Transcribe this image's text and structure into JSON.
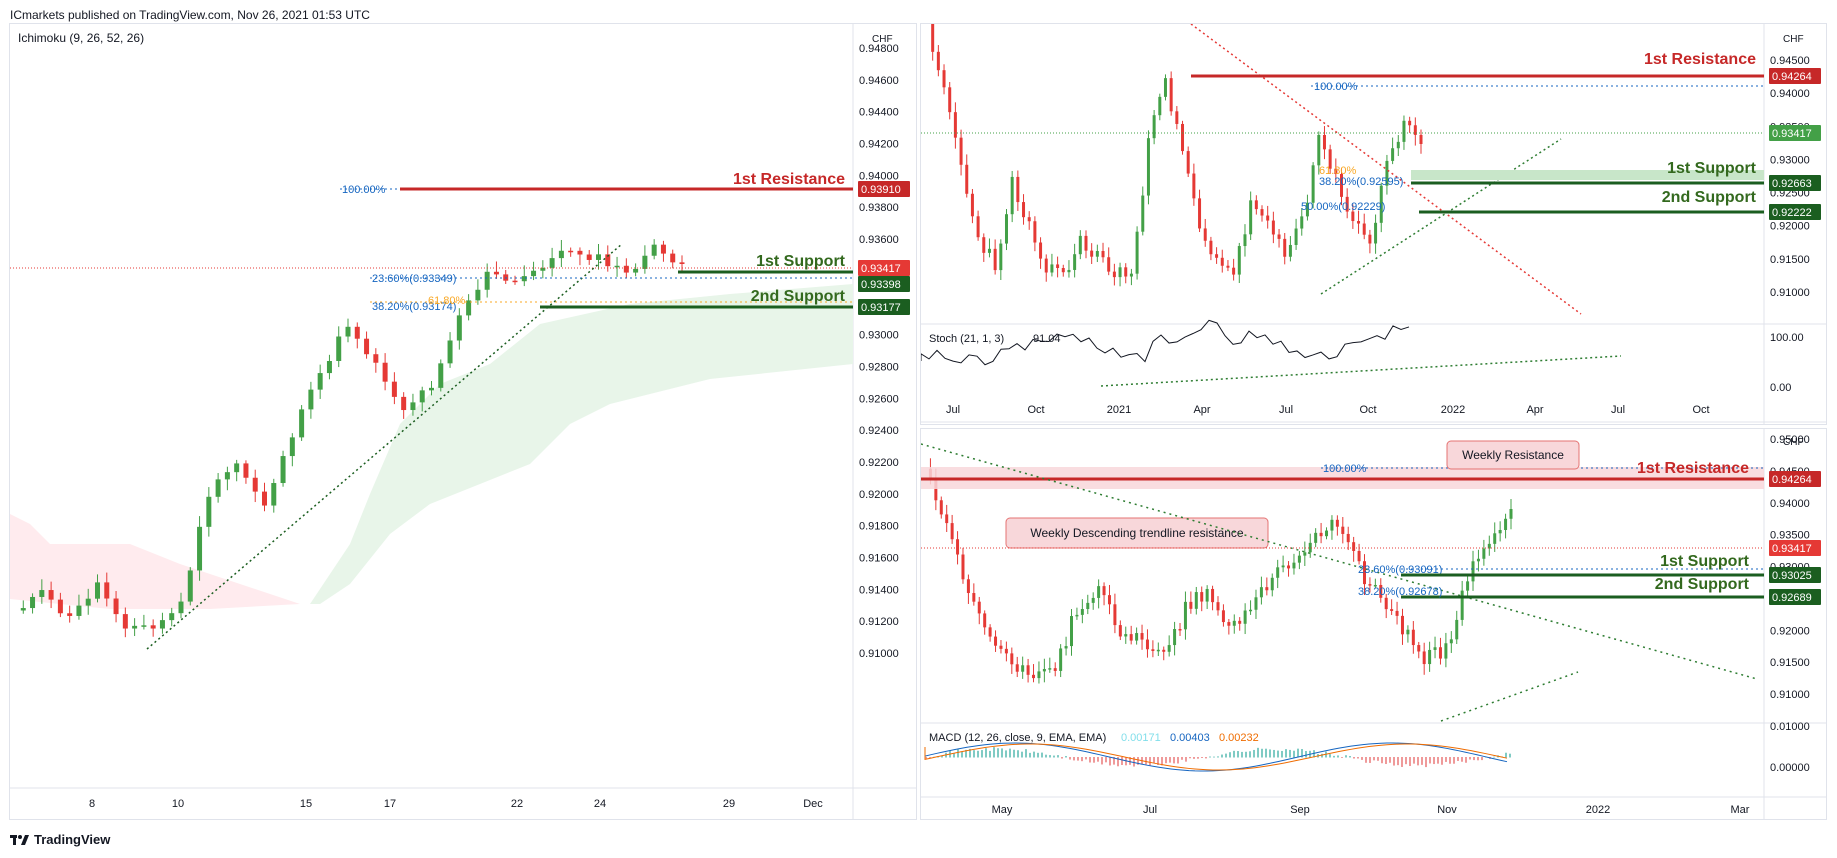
{
  "header": {
    "published": "ICmarkets published on TradingView.com, Nov 26, 2021 01:53 UTC"
  },
  "footer": {
    "brand": "TradingView",
    "logo_icon": "tradingview-logo-icon"
  },
  "colors": {
    "bull": "#43a047",
    "bear": "#e53935",
    "resistance": "#c62828",
    "support": "#1b5e20",
    "support_text": "#33691e",
    "fib": "#1565c0",
    "current": "#e53935",
    "cloud_bull": "#e8f5e9",
    "cloud_bear": "#ffebee"
  },
  "left_chart": {
    "indicator": "Ichimoku (9, 26, 52, 26)",
    "currency": "CHF",
    "y_ticks": [
      "0.94800",
      "0.94600",
      "0.94400",
      "0.94200",
      "0.94000",
      "0.93800",
      "0.93600",
      "0.93400",
      "0.93200",
      "0.93000",
      "0.92800",
      "0.92600",
      "0.92400",
      "0.92200",
      "0.92000",
      "0.91800",
      "0.91600",
      "0.91400",
      "0.91200",
      "0.91000"
    ],
    "x_ticks": [
      "8",
      "10",
      "15",
      "17",
      "22",
      "24",
      "29",
      "Dec"
    ],
    "lines": {
      "resistance_label": "1st Resistance",
      "resistance_price": "0.93910",
      "resistance_fib": "100.00%",
      "support1_label": "1st Support",
      "support1_price": "0.93398",
      "support1_fib": "23.60%(0.93349)",
      "support2_label": "2nd Support",
      "support2_price": "0.93177",
      "support2_fib": "38.20%(0.93174)",
      "support2_fib2": "61.80%",
      "current_price": "0.93417"
    }
  },
  "right_top_chart": {
    "currency": "CHF",
    "y_ticks": [
      "0.94500",
      "0.94000",
      "0.93500",
      "0.93000",
      "0.92500",
      "0.92000",
      "0.91500",
      "0.91000"
    ],
    "x_ticks": [
      "Jul",
      "Oct",
      "2021",
      "Apr",
      "Jul",
      "Oct",
      "2022",
      "Apr",
      "Jul",
      "Oct"
    ],
    "lines": {
      "resistance_label": "1st Resistance",
      "resistance_price": "0.94264",
      "resistance_fib": "100.00%",
      "support1_label": "1st Support",
      "support1_price": "0.92663",
      "support1_fib": "38.20%(0.92595)",
      "support1_fib2": "61.80%",
      "support2_label": "2nd Support",
      "support2_price": "0.92222",
      "support2_fib": "50.00%(0.92229)",
      "current_price": "0.93417"
    },
    "stoch": {
      "label": "Stoch (21, 1, 3)",
      "value": "91.04",
      "ticks": [
        "100.00",
        "0.00"
      ]
    }
  },
  "right_bottom_chart": {
    "currency": "CHF",
    "y_ticks": [
      "0.95000",
      "0.94500",
      "0.94000",
      "0.93500",
      "0.93000",
      "0.92500",
      "0.92000",
      "0.91500",
      "0.91000",
      "0.01000"
    ],
    "x_ticks": [
      "May",
      "Jul",
      "Sep",
      "Nov",
      "2022",
      "Mar"
    ],
    "annotations": {
      "weekly_resistance": "Weekly Resistance",
      "weekly_descending": "Weekly Descending trendline resistance"
    },
    "lines": {
      "resistance_label": "1st Resistance",
      "resistance_price": "0.94264",
      "resistance_fib": "100.00%",
      "support1_label": "1st Support",
      "support1_price": "0.93025",
      "support1_fib": "23.60%(0.93091)",
      "support2_label": "2nd Support",
      "support2_price": "0.92689",
      "support2_fib": "38.20%(0.92678)",
      "current_price": "0.93417"
    },
    "macd": {
      "label": "MACD (12, 26, close, 9, EMA, EMA)",
      "v1": "0.00171",
      "v2": "0.00403",
      "v3": "0.00232",
      "tick": "0.00000"
    }
  }
}
